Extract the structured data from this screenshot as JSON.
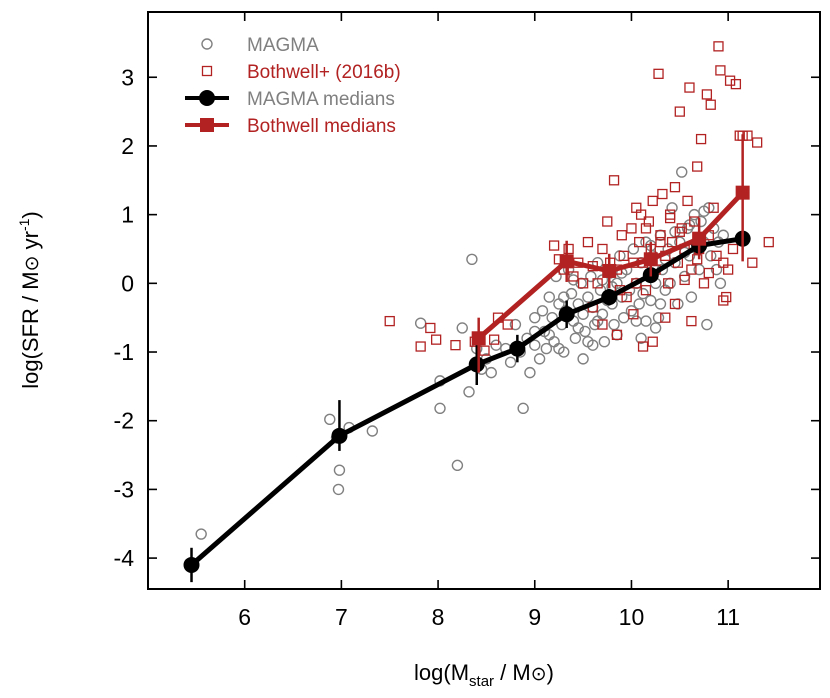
{
  "chart_data": {
    "type": "scatter",
    "xlabel": "log(M",
    "xlabel_sub": "star",
    "xlabel_tail": " / M",
    "xlabel_end": ")",
    "ylabel": "log(SFR / M",
    "ylabel_unit": " yr",
    "ylabel_sup": "-1",
    "ylabel_end": ")",
    "sun_symbol": "⊙",
    "xlim": [
      5.0,
      11.95
    ],
    "ylim": [
      -4.45,
      3.95
    ],
    "xticks": [
      6,
      7,
      8,
      9,
      10,
      11
    ],
    "yticks": [
      -4,
      -3,
      -2,
      -1,
      0,
      1,
      2,
      3
    ],
    "grid": false,
    "legend_position": "top-left",
    "colors": {
      "magma": "#808080",
      "bothwell": "#b22222",
      "magma_medians": "#000000",
      "bothwell_medians": "#b22222"
    },
    "series": [
      {
        "name": "MAGMA",
        "kind": "points",
        "marker": "open-circle",
        "points": [
          [
            5.55,
            -3.65
          ],
          [
            6.88,
            -1.98
          ],
          [
            6.95,
            -2.25
          ],
          [
            6.98,
            -2.72
          ],
          [
            6.97,
            -3.0
          ],
          [
            7.08,
            -2.1
          ],
          [
            7.32,
            -2.15
          ],
          [
            7.82,
            -0.58
          ],
          [
            8.02,
            -1.42
          ],
          [
            8.02,
            -1.82
          ],
          [
            8.2,
            -2.65
          ],
          [
            8.25,
            -0.65
          ],
          [
            8.32,
            -1.58
          ],
          [
            8.35,
            0.35
          ],
          [
            8.4,
            -0.95
          ],
          [
            8.45,
            -1.25
          ],
          [
            8.5,
            -1.1
          ],
          [
            8.55,
            -1.3
          ],
          [
            8.6,
            -0.9
          ],
          [
            8.7,
            -0.95
          ],
          [
            8.75,
            -1.15
          ],
          [
            8.8,
            -0.6
          ],
          [
            8.85,
            -1.0
          ],
          [
            8.88,
            -1.82
          ],
          [
            8.92,
            -0.8
          ],
          [
            8.95,
            -1.3
          ],
          [
            9.0,
            -0.5
          ],
          [
            9.0,
            -0.9
          ],
          [
            9.05,
            -1.1
          ],
          [
            9.08,
            -0.4
          ],
          [
            9.1,
            -0.7
          ],
          [
            9.12,
            -0.95
          ],
          [
            9.15,
            -0.2
          ],
          [
            9.18,
            -0.5
          ],
          [
            9.2,
            -0.85
          ],
          [
            9.22,
            0.1
          ],
          [
            9.25,
            -0.3
          ],
          [
            9.28,
            -0.6
          ],
          [
            9.3,
            -1.0
          ],
          [
            9.32,
            -0.4
          ],
          [
            9.35,
            0.2
          ],
          [
            9.38,
            -0.15
          ],
          [
            9.4,
            -0.55
          ],
          [
            9.42,
            -0.8
          ],
          [
            9.45,
            -0.3
          ],
          [
            9.48,
            0.0
          ],
          [
            9.5,
            -0.45
          ],
          [
            9.52,
            -0.7
          ],
          [
            9.55,
            -0.2
          ],
          [
            9.58,
            0.1
          ],
          [
            9.6,
            -0.35
          ],
          [
            9.62,
            -0.6
          ],
          [
            9.65,
            0.3
          ],
          [
            9.68,
            -0.1
          ],
          [
            9.7,
            -0.45
          ],
          [
            9.72,
            -0.85
          ],
          [
            9.75,
            -0.25
          ],
          [
            9.78,
            0.15
          ],
          [
            9.8,
            -0.3
          ],
          [
            9.82,
            -0.6
          ],
          [
            9.85,
            0.0
          ],
          [
            9.88,
            0.4
          ],
          [
            9.9,
            -0.2
          ],
          [
            9.92,
            -0.5
          ],
          [
            9.95,
            0.2
          ],
          [
            9.98,
            -0.1
          ],
          [
            10.0,
            -0.4
          ],
          [
            10.02,
            0.5
          ],
          [
            10.05,
            0.0
          ],
          [
            10.08,
            -0.3
          ],
          [
            10.1,
            0.3
          ],
          [
            10.12,
            -0.15
          ],
          [
            10.15,
            0.6
          ],
          [
            10.18,
            0.1
          ],
          [
            10.2,
            -0.25
          ],
          [
            10.22,
            0.4
          ],
          [
            10.25,
            0.0
          ],
          [
            10.28,
            -0.5
          ],
          [
            10.3,
            0.7
          ],
          [
            10.32,
            0.2
          ],
          [
            10.35,
            -0.1
          ],
          [
            10.38,
            0.5
          ],
          [
            10.4,
            0.0
          ],
          [
            10.42,
            1.1
          ],
          [
            10.45,
            0.3
          ],
          [
            10.48,
            -0.3
          ],
          [
            10.5,
            0.6
          ],
          [
            10.52,
            1.62
          ],
          [
            10.55,
            0.1
          ],
          [
            10.58,
            0.8
          ],
          [
            10.6,
            0.4
          ],
          [
            10.62,
            -0.2
          ],
          [
            10.65,
            1.0
          ],
          [
            10.68,
            0.5
          ],
          [
            10.7,
            0.2
          ],
          [
            10.72,
            0.9
          ],
          [
            10.75,
            0.6
          ],
          [
            10.78,
            -0.6
          ],
          [
            10.8,
            1.1
          ],
          [
            10.82,
            0.4
          ],
          [
            10.85,
            0.8
          ],
          [
            10.88,
            0.2
          ],
          [
            10.9,
            0.6
          ],
          [
            10.92,
            0.0
          ],
          [
            10.95,
            0.7
          ],
          [
            9.5,
            -1.1
          ],
          [
            9.15,
            -0.75
          ],
          [
            9.6,
            -0.9
          ],
          [
            9.3,
            -0.2
          ],
          [
            9.7,
            0.05
          ],
          [
            9.9,
            0.15
          ],
          [
            10.05,
            -0.55
          ],
          [
            10.2,
            0.55
          ],
          [
            10.35,
            0.35
          ],
          [
            10.6,
            0.85
          ],
          [
            10.75,
            1.05
          ],
          [
            9.4,
            0.05
          ],
          [
            9.8,
            -0.05
          ],
          [
            10.1,
            -0.8
          ],
          [
            9.25,
            -0.95
          ],
          [
            9.55,
            -0.85
          ],
          [
            10.15,
            -0.55
          ],
          [
            9.85,
            -0.75
          ],
          [
            10.3,
            -0.3
          ],
          [
            9.0,
            -0.7
          ],
          [
            9.45,
            -0.65
          ],
          [
            10.45,
            0.75
          ],
          [
            10.55,
            0.45
          ],
          [
            9.65,
            -0.55
          ],
          [
            10.25,
            -0.65
          ]
        ]
      },
      {
        "name": "Bothwell+ (2016b)",
        "kind": "points",
        "marker": "open-square",
        "points": [
          [
            7.5,
            -0.55
          ],
          [
            7.92,
            -0.65
          ],
          [
            7.98,
            -0.82
          ],
          [
            7.82,
            -0.92
          ],
          [
            8.18,
            -0.9
          ],
          [
            8.48,
            -0.98
          ],
          [
            8.58,
            -0.82
          ],
          [
            8.62,
            -0.5
          ],
          [
            8.72,
            -0.6
          ],
          [
            8.38,
            -0.85
          ],
          [
            9.2,
            0.55
          ],
          [
            9.25,
            0.35
          ],
          [
            9.3,
            0.2
          ],
          [
            9.35,
            0.5
          ],
          [
            9.4,
            0.1
          ],
          [
            9.45,
            0.3
          ],
          [
            9.5,
            0.0
          ],
          [
            9.55,
            0.6
          ],
          [
            9.6,
            0.25
          ],
          [
            9.65,
            0.0
          ],
          [
            9.7,
            0.5
          ],
          [
            9.75,
            0.9
          ],
          [
            9.78,
            0.3
          ],
          [
            9.82,
            1.5
          ],
          [
            9.85,
            0.2
          ],
          [
            9.88,
            -0.1
          ],
          [
            9.9,
            0.7
          ],
          [
            9.92,
            0.4
          ],
          [
            9.95,
            -0.2
          ],
          [
            10.0,
            0.8
          ],
          [
            10.02,
            0.3
          ],
          [
            10.05,
            0.0
          ],
          [
            10.08,
            0.6
          ],
          [
            10.1,
            1.0
          ],
          [
            10.12,
            0.3
          ],
          [
            10.15,
            -0.1
          ],
          [
            10.18,
            0.9
          ],
          [
            10.2,
            0.5
          ],
          [
            10.22,
            1.2
          ],
          [
            10.25,
            0.2
          ],
          [
            10.28,
            3.05
          ],
          [
            10.3,
            0.7
          ],
          [
            10.32,
            1.3
          ],
          [
            10.35,
            0.4
          ],
          [
            10.38,
            0.0
          ],
          [
            10.4,
            1.0
          ],
          [
            10.42,
            0.6
          ],
          [
            10.45,
            1.4
          ],
          [
            10.48,
            0.3
          ],
          [
            10.5,
            2.5
          ],
          [
            10.52,
            0.8
          ],
          [
            10.55,
            0.5
          ],
          [
            10.58,
            1.2
          ],
          [
            10.6,
            2.85
          ],
          [
            10.62,
            0.2
          ],
          [
            10.65,
            0.9
          ],
          [
            10.68,
            1.7
          ],
          [
            10.7,
            0.5
          ],
          [
            10.72,
            2.1
          ],
          [
            10.75,
            0.0
          ],
          [
            10.78,
            2.75
          ],
          [
            10.8,
            0.7
          ],
          [
            10.82,
            2.6
          ],
          [
            10.85,
            1.1
          ],
          [
            10.88,
            0.4
          ],
          [
            10.9,
            3.45
          ],
          [
            10.92,
            3.1
          ],
          [
            10.95,
            0.3
          ],
          [
            10.98,
            -0.2
          ],
          [
            11.02,
            2.95
          ],
          [
            11.05,
            0.5
          ],
          [
            11.08,
            2.9
          ],
          [
            11.12,
            2.15
          ],
          [
            11.15,
            2.15
          ],
          [
            11.2,
            2.15
          ],
          [
            11.25,
            0.3
          ],
          [
            11.3,
            2.05
          ],
          [
            11.42,
            0.6
          ],
          [
            10.12,
            -0.92
          ],
          [
            10.22,
            -0.85
          ],
          [
            10.35,
            -0.5
          ],
          [
            10.02,
            -0.45
          ],
          [
            9.85,
            -0.75
          ],
          [
            9.7,
            -0.6
          ],
          [
            9.6,
            -0.35
          ],
          [
            10.45,
            -0.3
          ],
          [
            10.55,
            0.05
          ],
          [
            10.62,
            -0.55
          ],
          [
            10.95,
            -0.25
          ],
          [
            10.05,
            1.1
          ],
          [
            10.15,
            0.8
          ],
          [
            10.3,
            0.6
          ],
          [
            10.4,
            0.95
          ],
          [
            10.5,
            0.75
          ],
          [
            10.68,
            0.35
          ],
          [
            10.8,
            0.15
          ],
          [
            11.0,
            0.2
          ]
        ]
      },
      {
        "name": "MAGMA medians",
        "kind": "line",
        "marker": "filled-circle",
        "points": [
          [
            5.45,
            -4.1
          ],
          [
            6.98,
            -2.22
          ],
          [
            8.4,
            -1.18
          ],
          [
            8.82,
            -0.95
          ],
          [
            9.33,
            -0.45
          ],
          [
            9.77,
            -0.2
          ],
          [
            10.2,
            0.12
          ],
          [
            10.7,
            0.55
          ],
          [
            11.15,
            0.65
          ]
        ],
        "err": [
          [
            0.25,
            0.25
          ],
          [
            0.22,
            0.52
          ],
          [
            0.3,
            0.3
          ],
          [
            0.2,
            0.2
          ],
          [
            0.2,
            0.2
          ],
          [
            0.12,
            0.12
          ],
          [
            0.1,
            0.1
          ],
          [
            0.1,
            0.1
          ],
          [
            0.1,
            0.1
          ]
        ]
      },
      {
        "name": "Bothwell medians",
        "kind": "line",
        "marker": "filled-square",
        "points": [
          [
            8.42,
            -0.8
          ],
          [
            9.33,
            0.32
          ],
          [
            9.77,
            0.18
          ],
          [
            10.2,
            0.35
          ],
          [
            10.7,
            0.65
          ],
          [
            11.15,
            1.32
          ]
        ],
        "err": [
          [
            0.5,
            0.3
          ],
          [
            0.3,
            0.3
          ],
          [
            0.25,
            0.25
          ],
          [
            0.25,
            0.25
          ],
          [
            0.3,
            0.3
          ],
          [
            1.0,
            0.85
          ]
        ]
      }
    ]
  }
}
